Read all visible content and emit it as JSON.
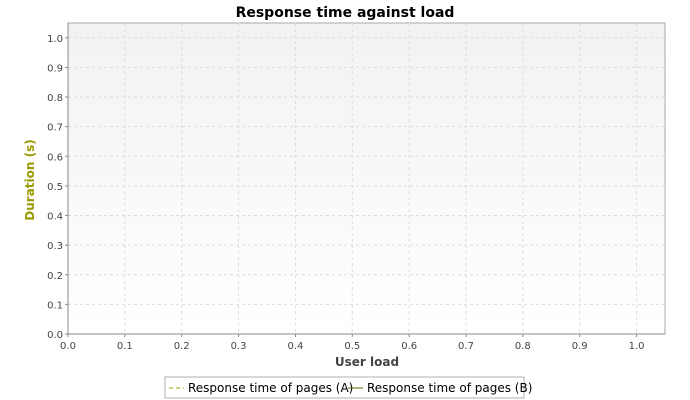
{
  "chart_data": {
    "type": "line",
    "title": "Response time against load",
    "xlabel": "User load",
    "ylabel": "Duration (s)",
    "xlim": [
      0.0,
      1.05
    ],
    "ylim": [
      0.0,
      1.05
    ],
    "x_ticks": [
      "0.0",
      "0.1",
      "0.2",
      "0.3",
      "0.4",
      "0.5",
      "0.6",
      "0.7",
      "0.8",
      "0.9",
      "1.0"
    ],
    "y_ticks": [
      "0.0",
      "0.1",
      "0.2",
      "0.3",
      "0.4",
      "0.5",
      "0.6",
      "0.7",
      "0.8",
      "0.9",
      "1.0"
    ],
    "grid": true,
    "legend_position": "bottom",
    "series": [
      {
        "name": "Response time of pages (A)",
        "line_style": "dashed",
        "color": "#a3a300",
        "points": []
      },
      {
        "name": "Response time of pages (B)",
        "line_style": "solid",
        "color": "#666600",
        "points": []
      }
    ],
    "colors": {
      "ylabel": "#999900",
      "plot_background_top": "#f2f2f2",
      "plot_background_bottom": "#ffffff",
      "grid": "#dddddd",
      "axis": "#888888"
    }
  }
}
